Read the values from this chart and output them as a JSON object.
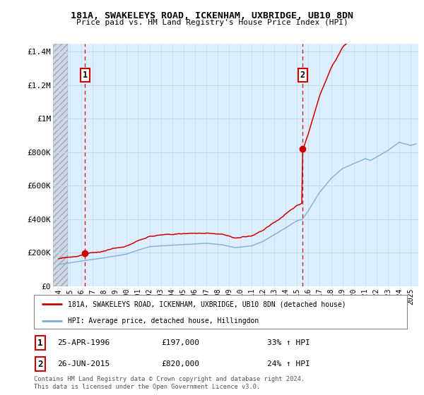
{
  "title": "181A, SWAKELEYS ROAD, ICKENHAM, UXBRIDGE, UB10 8DN",
  "subtitle": "Price paid vs. HM Land Registry's House Price Index (HPI)",
  "sale1_date": 1996.32,
  "sale1_price": 197000,
  "sale2_date": 2015.49,
  "sale2_price": 820000,
  "sale1_text": "25-APR-1996",
  "sale1_price_text": "£197,000",
  "sale1_hpi_text": "33% ↑ HPI",
  "sale2_text": "26-JUN-2015",
  "sale2_price_text": "£820,000",
  "sale2_hpi_text": "24% ↑ HPI",
  "ylim": [
    0,
    1450000
  ],
  "xlim": [
    1993.5,
    2025.7
  ],
  "yticks": [
    0,
    200000,
    400000,
    600000,
    800000,
    1000000,
    1200000,
    1400000
  ],
  "ytick_labels": [
    "£0",
    "£200K",
    "£400K",
    "£600K",
    "£800K",
    "£1M",
    "£1.2M",
    "£1.4M"
  ],
  "xticks": [
    1994,
    1995,
    1996,
    1997,
    1998,
    1999,
    2000,
    2001,
    2002,
    2003,
    2004,
    2005,
    2006,
    2007,
    2008,
    2009,
    2010,
    2011,
    2012,
    2013,
    2014,
    2015,
    2016,
    2017,
    2018,
    2019,
    2020,
    2021,
    2022,
    2023,
    2024,
    2025
  ],
  "legend_line1": "181A, SWAKELEYS ROAD, ICKENHAM, UXBRIDGE, UB10 8DN (detached house)",
  "legend_line2": "HPI: Average price, detached house, Hillingdon",
  "footer": "Contains HM Land Registry data © Crown copyright and database right 2024.\nThis data is licensed under the Open Government Licence v3.0.",
  "red_color": "#cc0000",
  "blue_color": "#7ab0d4",
  "hatch_color": "#b0b8c8",
  "bg_color": "#ddeeff",
  "grid_color": "#c8d8e8"
}
